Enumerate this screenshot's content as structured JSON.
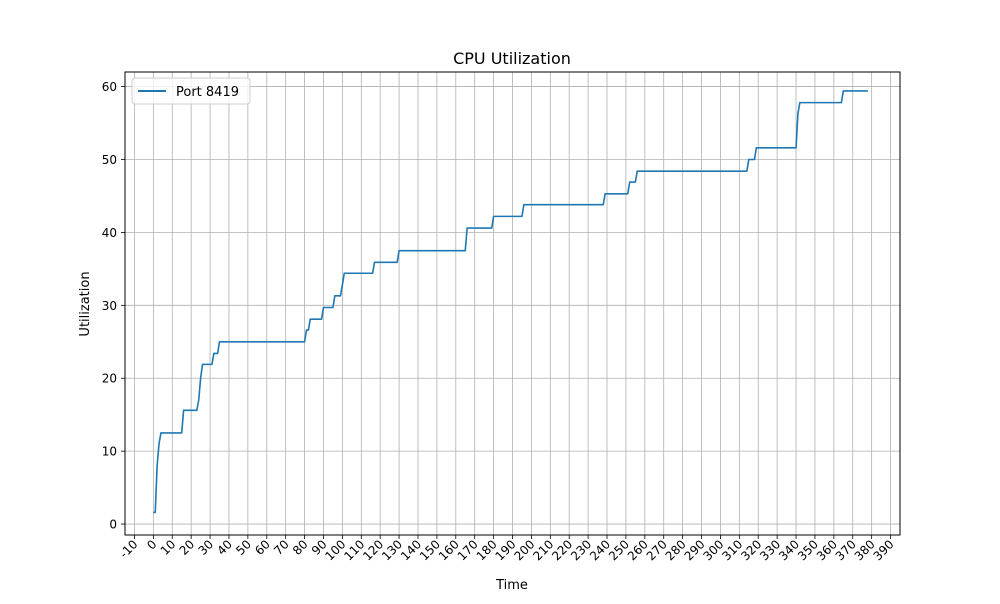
{
  "chart_data": {
    "type": "line",
    "title": "CPU Utilization",
    "xlabel": "Time",
    "ylabel": "Utilization",
    "xlim": [
      -15,
      395
    ],
    "ylim": [
      -1.5,
      62
    ],
    "grid": true,
    "legend_position": "upper-left",
    "x_ticks": [
      -10,
      0,
      10,
      20,
      30,
      40,
      50,
      60,
      70,
      80,
      90,
      100,
      110,
      120,
      130,
      140,
      150,
      160,
      170,
      180,
      190,
      200,
      210,
      220,
      230,
      240,
      250,
      260,
      270,
      280,
      290,
      300,
      310,
      320,
      330,
      340,
      350,
      360,
      370,
      380,
      390
    ],
    "y_ticks": [
      0,
      10,
      20,
      30,
      40,
      50,
      60
    ],
    "series": [
      {
        "name": "Port 8419",
        "color": "#1f77b4",
        "points": [
          [
            0,
            1.6
          ],
          [
            1,
            1.6
          ],
          [
            2,
            8
          ],
          [
            3,
            11
          ],
          [
            4,
            12.5
          ],
          [
            15,
            12.5
          ],
          [
            16,
            15.6
          ],
          [
            23,
            15.6
          ],
          [
            24,
            17
          ],
          [
            25,
            20
          ],
          [
            26,
            21.9
          ],
          [
            31,
            21.9
          ],
          [
            32,
            23.4
          ],
          [
            34,
            23.4
          ],
          [
            35,
            25
          ],
          [
            80,
            25
          ],
          [
            81,
            26.6
          ],
          [
            82,
            26.6
          ],
          [
            83,
            28.1
          ],
          [
            89,
            28.1
          ],
          [
            90,
            29.7
          ],
          [
            95,
            29.7
          ],
          [
            96,
            31.3
          ],
          [
            99,
            31.3
          ],
          [
            100,
            32.8
          ],
          [
            101,
            34.4
          ],
          [
            116,
            34.4
          ],
          [
            117,
            35.9
          ],
          [
            129,
            35.9
          ],
          [
            130,
            37.5
          ],
          [
            165,
            37.5
          ],
          [
            166,
            40.6
          ],
          [
            179,
            40.6
          ],
          [
            180,
            42.2
          ],
          [
            195,
            42.2
          ],
          [
            196,
            43.8
          ],
          [
            238,
            43.8
          ],
          [
            239,
            45.3
          ],
          [
            251,
            45.3
          ],
          [
            252,
            46.9
          ],
          [
            255,
            46.9
          ],
          [
            256,
            48.4
          ],
          [
            314,
            48.4
          ],
          [
            315,
            50
          ],
          [
            318,
            50
          ],
          [
            319,
            51.6
          ],
          [
            340,
            51.6
          ],
          [
            341,
            56.3
          ],
          [
            342,
            57.8
          ],
          [
            364,
            57.8
          ],
          [
            365,
            59.4
          ],
          [
            378,
            59.4
          ]
        ]
      }
    ]
  }
}
